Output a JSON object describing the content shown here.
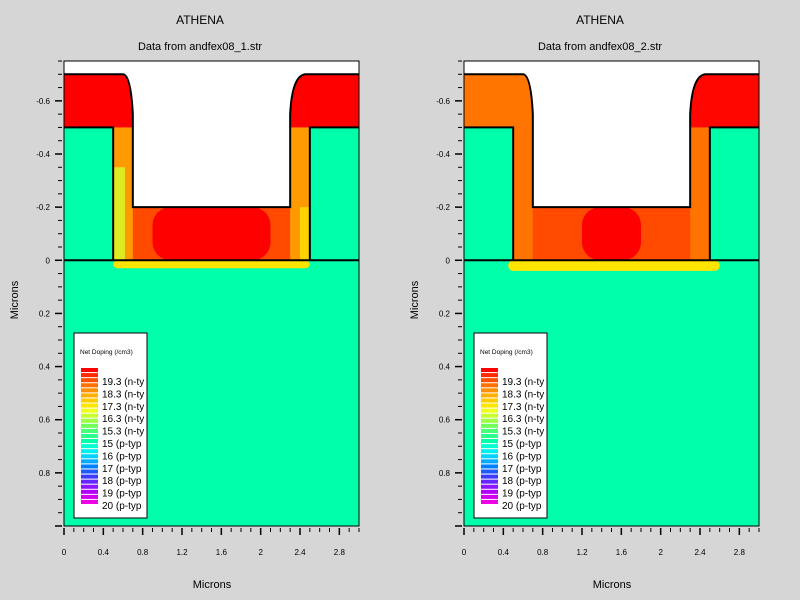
{
  "colors": {
    "background": "#d6d6d6",
    "substrate": "#00ffaa",
    "oxide": "#ffffff",
    "red": "#ff0000",
    "orange_red": "#ff4a00",
    "orange": "#ff7a00",
    "amber": "#ffa800",
    "yellow": "#ffe400",
    "yellow_green": "#d6ff2a",
    "outline": "#000000"
  },
  "chart_data": [
    {
      "type": "heatmap",
      "title": "ATHENA",
      "subtitle": "Data from andfex08_1.str",
      "xlabel": "Microns",
      "ylabel": "Microns",
      "xlim": [
        0,
        3.0
      ],
      "ylim": [
        -0.75,
        1.0
      ],
      "y_inverted": true,
      "x_ticks": [
        "0",
        "0.4",
        "0.8",
        "1.2",
        "1.6",
        "2",
        "2.4",
        "2.8"
      ],
      "y_ticks": [
        "-0.6",
        "-0.4",
        "-0.2",
        "0",
        "0.2",
        "0.4",
        "0.6",
        "0.8"
      ],
      "structure": {
        "silicon_surface_y": 0.0,
        "trench_x": [
          0.5,
          2.5
        ],
        "trench_floor_y": -0.2,
        "inner_wall_x": [
          0.7,
          2.3
        ],
        "poly_top_y": -0.7,
        "spacer_top_y": -0.5
      },
      "doping_regions": [
        {
          "name": "left_poly_top",
          "x": [
            0.0,
            0.7
          ],
          "y": [
            -0.7,
            -0.5
          ],
          "level": "19.3+"
        },
        {
          "name": "right_poly_top",
          "x": [
            2.3,
            3.0
          ],
          "y": [
            -0.7,
            -0.5
          ],
          "level": "19.3+"
        },
        {
          "name": "trench_floor_center",
          "x": [
            0.9,
            2.1
          ],
          "y": [
            -0.2,
            0.0
          ],
          "level": "19.3+"
        },
        {
          "name": "left_sidewall",
          "x": [
            0.5,
            0.7
          ],
          "y": [
            -0.5,
            0.0
          ],
          "level": "17.3 to 19.3"
        },
        {
          "name": "right_sidewall",
          "x": [
            2.3,
            2.5
          ],
          "y": [
            -0.5,
            0.0
          ],
          "level": "17.3 to 19.3"
        },
        {
          "name": "junction",
          "x": [
            0.5,
            2.5
          ],
          "y": [
            0.0,
            0.03
          ],
          "level": "15.3 to 17.3"
        }
      ],
      "legend": {
        "title": "Net Doping (/cm3)",
        "placement": "bottom-left",
        "entries": [
          "19.3 (n-ty",
          "18.3 (n-ty",
          "17.3 (n-ty",
          "16.3 (n-ty",
          "15.3 (n-ty",
          "15 (p-typ",
          "16 (p-typ",
          "17 (p-typ",
          "18 (p-typ",
          "19 (p-typ",
          "20 (p-typ"
        ],
        "swatch_colors": [
          "#ff0000",
          "#ff2a00",
          "#ff4f00",
          "#ff7000",
          "#ff9100",
          "#ffb000",
          "#ffcc00",
          "#ffe600",
          "#f0ff1e",
          "#c8ff32",
          "#9bff46",
          "#6eff5a",
          "#46ff78",
          "#28ff8c",
          "#00ffaa",
          "#00ffd2",
          "#00f0f0",
          "#00d2ff",
          "#00aaff",
          "#0080ff",
          "#1e5aff",
          "#3c3cff",
          "#6428ff",
          "#8c14ff",
          "#b400ff",
          "#d200f0",
          "#f000e6"
        ]
      }
    },
    {
      "type": "heatmap",
      "title": "ATHENA",
      "subtitle": "Data from andfex08_2.str",
      "xlabel": "Microns",
      "ylabel": "Microns",
      "xlim": [
        0,
        3.0
      ],
      "ylim": [
        -0.75,
        1.0
      ],
      "y_inverted": true,
      "x_ticks": [
        "0",
        "0.4",
        "0.8",
        "1.2",
        "1.6",
        "2",
        "2.4",
        "2.8"
      ],
      "y_ticks": [
        "-0.6",
        "-0.4",
        "-0.2",
        "0",
        "0.2",
        "0.4",
        "0.6",
        "0.8"
      ],
      "structure": {
        "silicon_surface_y": 0.0,
        "trench_x": [
          0.5,
          2.5
        ],
        "trench_floor_y": -0.2,
        "inner_wall_x": [
          0.7,
          2.3
        ],
        "poly_top_y": -0.7,
        "spacer_top_y": -0.5
      },
      "doping_regions": [
        {
          "name": "left_poly_top",
          "x": [
            0.0,
            0.7
          ],
          "y": [
            -0.7,
            -0.5
          ],
          "level": "18.3 to 19.3"
        },
        {
          "name": "right_poly_top",
          "x": [
            2.3,
            3.0
          ],
          "y": [
            -0.7,
            -0.5
          ],
          "level": "19.3+"
        },
        {
          "name": "trench_floor_center",
          "x": [
            1.2,
            1.8
          ],
          "y": [
            -0.2,
            0.0
          ],
          "level": "19.3+"
        },
        {
          "name": "left_sidewall",
          "x": [
            0.5,
            0.7
          ],
          "y": [
            -0.5,
            0.0
          ],
          "level": "18.3"
        },
        {
          "name": "right_sidewall",
          "x": [
            2.3,
            2.5
          ],
          "y": [
            -0.5,
            0.0
          ],
          "level": "18.3"
        },
        {
          "name": "junction",
          "x": [
            0.45,
            2.6
          ],
          "y": [
            0.0,
            0.04
          ],
          "level": "15.3 to 17.3"
        }
      ],
      "legend": {
        "title": "Net Doping (/cm3)",
        "placement": "bottom-left",
        "entries": [
          "19.3 (n-ty",
          "18.3 (n-ty",
          "17.3 (n-ty",
          "16.3 (n-ty",
          "15.3 (n-ty",
          "15 (p-typ",
          "16 (p-typ",
          "17 (p-typ",
          "18 (p-typ",
          "19 (p-typ",
          "20 (p-typ"
        ],
        "swatch_colors": [
          "#ff0000",
          "#ff2a00",
          "#ff4f00",
          "#ff7000",
          "#ff9100",
          "#ffb000",
          "#ffcc00",
          "#ffe600",
          "#f0ff1e",
          "#c8ff32",
          "#9bff46",
          "#6eff5a",
          "#46ff78",
          "#28ff8c",
          "#00ffaa",
          "#00ffd2",
          "#00f0f0",
          "#00d2ff",
          "#00aaff",
          "#0080ff",
          "#1e5aff",
          "#3c3cff",
          "#6428ff",
          "#8c14ff",
          "#b400ff",
          "#d200f0",
          "#f000e6"
        ]
      }
    }
  ]
}
